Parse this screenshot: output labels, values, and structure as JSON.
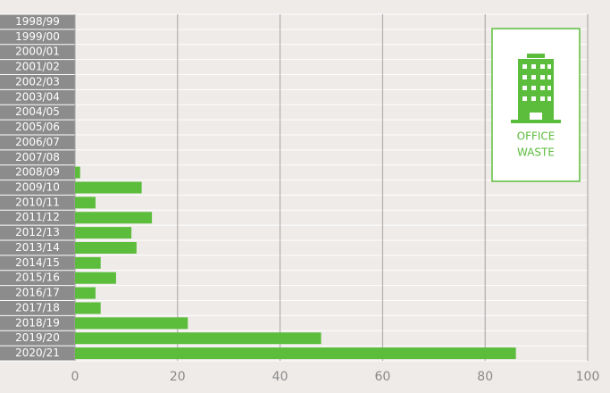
{
  "chart_data": {
    "type": "bar",
    "orientation": "horizontal",
    "categories": [
      "1998/99",
      "1999/00",
      "2000/01",
      "2001/02",
      "2002/03",
      "2003/04",
      "2004/05",
      "2005/06",
      "2006/07",
      "2007/08",
      "2008/09",
      "2009/10",
      "2010/11",
      "2011/12",
      "2012/13",
      "2013/14",
      "2014/15",
      "2015/16",
      "2016/17",
      "2017/18",
      "2018/19",
      "2019/20",
      "2020/21"
    ],
    "values": [
      0,
      0,
      0,
      0,
      0,
      0,
      0,
      0,
      0,
      0,
      1,
      13,
      4,
      15,
      11,
      12,
      5,
      8,
      4,
      5,
      22,
      48,
      86
    ],
    "color": "#5cbd3c",
    "xlim": [
      0,
      100
    ],
    "xticks": [
      0,
      20,
      40,
      60,
      80,
      100
    ],
    "grid": true,
    "annotation": [
      "OFFICE",
      "WASTE"
    ]
  }
}
